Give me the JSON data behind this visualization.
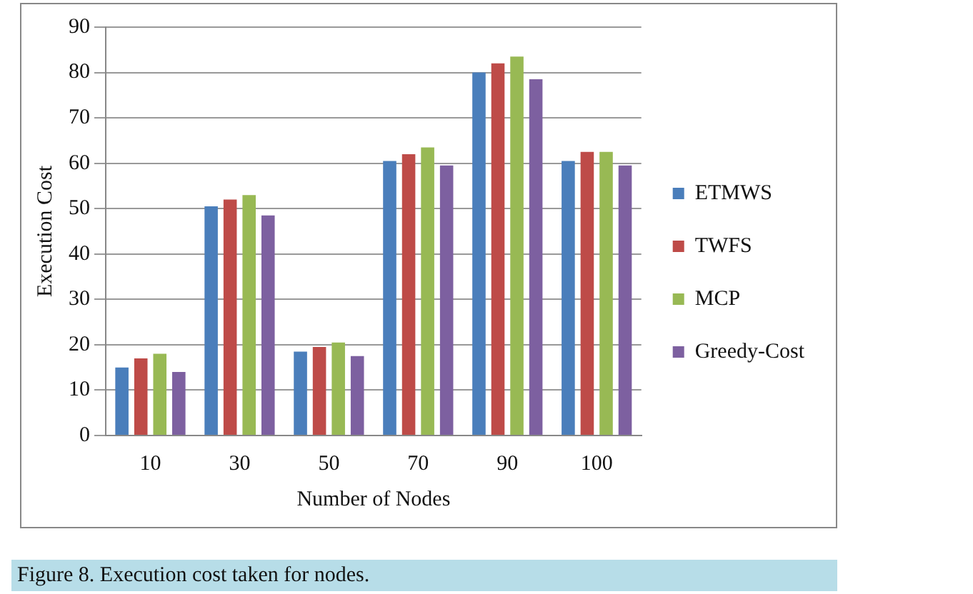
{
  "chart_data": {
    "type": "bar",
    "xlabel": "Number of Nodes",
    "ylabel": "Execution Cost",
    "categories": [
      "10",
      "30",
      "50",
      "70",
      "90",
      "100"
    ],
    "series": [
      {
        "name": "ETMWS",
        "color": "#4a7ebb",
        "values": [
          15,
          50.5,
          18.5,
          60.5,
          80,
          60.5
        ]
      },
      {
        "name": "TWFS",
        "color": "#be4b48",
        "values": [
          17,
          52,
          19.5,
          62,
          82,
          62.5
        ]
      },
      {
        "name": "MCP",
        "color": "#98b954",
        "values": [
          18,
          53,
          20.5,
          63.5,
          83.5,
          62.5
        ]
      },
      {
        "name": "Greedy-Cost",
        "color": "#7d60a0",
        "values": [
          14,
          48.5,
          17.5,
          59.5,
          78.5,
          59.5
        ]
      }
    ],
    "ylim": [
      0,
      90
    ],
    "yticks": [
      0,
      10,
      20,
      30,
      40,
      50,
      60,
      70,
      80,
      90
    ],
    "grid": "y",
    "legend": "right",
    "annotations": [
      "Figure 8. Execution cost taken for nodes."
    ]
  }
}
